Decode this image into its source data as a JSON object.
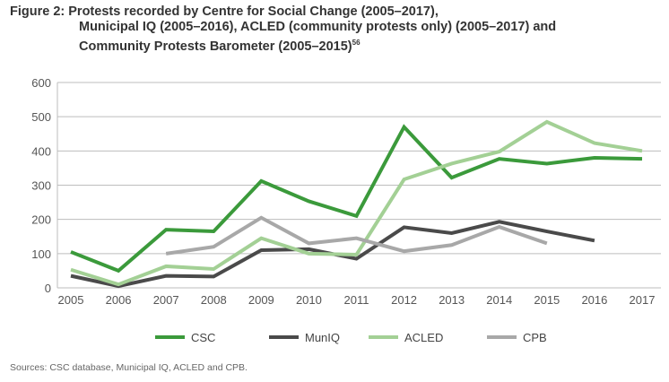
{
  "title": {
    "line1": "Figure 2: Protests recorded by Centre for Social Change (2005–2017),",
    "line2": "Municipal IQ (2005–2016), ACLED (community protests only) (2005–2017) and",
    "line3": "Community Protests Barometer (2005–2015)",
    "footnote": "56"
  },
  "source": "Sources: CSC database, Municipal IQ, ACLED and CPB.",
  "chart_data": {
    "type": "line",
    "x": [
      "2005",
      "2006",
      "2007",
      "2008",
      "2009",
      "2010",
      "2011",
      "2012",
      "2013",
      "2014",
      "2015",
      "2016",
      "2017"
    ],
    "ylim": [
      0,
      600
    ],
    "yticks": [
      "0",
      "100",
      "200",
      "300",
      "400",
      "500",
      "600"
    ],
    "grid": true,
    "legend": "bottom",
    "series": [
      {
        "name": "CSC",
        "color": "#3b9a3b",
        "values": [
          105,
          50,
          170,
          165,
          312,
          253,
          210,
          470,
          322,
          377,
          363,
          380,
          377
        ]
      },
      {
        "name": "MunIQ",
        "color": "#4a4a4a",
        "values": [
          35,
          5,
          35,
          33,
          110,
          113,
          85,
          177,
          160,
          193,
          165,
          138,
          null
        ]
      },
      {
        "name": "ACLED",
        "color": "#a3d095",
        "values": [
          53,
          10,
          63,
          55,
          145,
          100,
          97,
          317,
          363,
          398,
          485,
          423,
          400
        ]
      },
      {
        "name": "CPB",
        "color": "#a8a8a8",
        "values": [
          null,
          null,
          100,
          120,
          205,
          130,
          145,
          107,
          125,
          178,
          130,
          null,
          null
        ]
      }
    ]
  }
}
